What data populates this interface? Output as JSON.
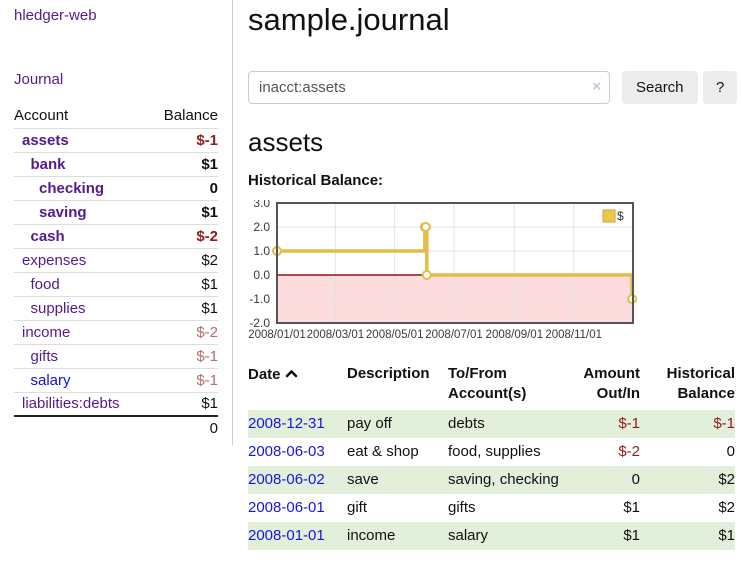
{
  "sidebar": {
    "app_title": "hledger-web",
    "journal_label": "Journal",
    "accounts_table": {
      "headers": {
        "account": "Account",
        "balance": "Balance"
      },
      "rows": [
        {
          "name": "assets",
          "balance": "$-1",
          "indent": 1,
          "bold": true,
          "balance_style": "neg-strong"
        },
        {
          "name": "bank",
          "balance": "$1",
          "indent": 2,
          "bold": true,
          "balance_style": "pos"
        },
        {
          "name": "checking",
          "balance": "0",
          "indent": 3,
          "bold": true,
          "balance_style": "pos"
        },
        {
          "name": "saving",
          "balance": "$1",
          "indent": 3,
          "bold": true,
          "balance_style": "pos"
        },
        {
          "name": "cash",
          "balance": "$-2",
          "indent": 2,
          "bold": true,
          "balance_style": "neg-strong"
        },
        {
          "name": "expenses",
          "balance": "$2",
          "indent": 1,
          "bold": false,
          "balance_style": "pos"
        },
        {
          "name": "food",
          "balance": "$1",
          "indent": 2,
          "bold": false,
          "balance_style": "pos"
        },
        {
          "name": "supplies",
          "balance": "$1",
          "indent": 2,
          "bold": false,
          "balance_style": "pos"
        },
        {
          "name": "income",
          "balance": "$-2",
          "indent": 1,
          "bold": false,
          "balance_style": "neg-soft"
        },
        {
          "name": "gifts",
          "balance": "$-1",
          "indent": 2,
          "bold": false,
          "balance_style": "neg-soft"
        },
        {
          "name": "salary",
          "balance": "$-1",
          "indent": 2,
          "bold": false,
          "balance_style": "neg-soft",
          "link_color": "blue"
        },
        {
          "name": "liabilities:debts",
          "balance": "$1",
          "indent": 1,
          "bold": false,
          "balance_style": "pos"
        }
      ],
      "total": "0"
    }
  },
  "header": {
    "title": "sample.journal"
  },
  "search": {
    "query": "inacct:assets",
    "clear_icon": "×",
    "button_label": "Search",
    "help_label": "?"
  },
  "account_page": {
    "heading": "assets",
    "chart_title": "Historical Balance:"
  },
  "chart_data": {
    "type": "line",
    "step": true,
    "title": "Historical Balance",
    "series": [
      {
        "name": "$",
        "color": "#e4bc48",
        "points": [
          [
            "2008-01-01",
            1
          ],
          [
            "2008-06-01",
            2
          ],
          [
            "2008-06-02",
            2
          ],
          [
            "2008-06-03",
            0
          ],
          [
            "2008-12-31",
            -1
          ]
        ]
      }
    ],
    "x_range": [
      "2008-01-01",
      "2009-01-01"
    ],
    "ylim": [
      -2,
      3
    ],
    "y_ticks": [
      {
        "value": 3,
        "label": "3.0"
      },
      {
        "value": 2,
        "label": "2.0"
      },
      {
        "value": 1,
        "label": "1.0"
      },
      {
        "value": 0,
        "label": "0.0"
      },
      {
        "value": -1,
        "label": "-1.0"
      },
      {
        "value": -2,
        "label": "-2.0"
      }
    ],
    "x_ticks": [
      {
        "date": "2008-01-01",
        "label": "2008/01/01"
      },
      {
        "date": "2008-03-01",
        "label": "2008/03/01"
      },
      {
        "date": "2008-05-01",
        "label": "2008/05/01"
      },
      {
        "date": "2008-07-01",
        "label": "2008/07/01"
      },
      {
        "date": "2008-09-01",
        "label": "2008/09/01"
      },
      {
        "date": "2008-11-01",
        "label": "2008/11/01"
      }
    ],
    "negative_fill": "#fcdcdc",
    "zero_line_color": "#8f1414",
    "grid": true,
    "legend": {
      "label": "$",
      "position": "top-right",
      "swatch_fill": "#ecc94b",
      "swatch_border": "#c8a33b"
    }
  },
  "register": {
    "headers": {
      "date": "Date",
      "description": "Description",
      "account": "To/From Account(s)",
      "amount": "Amount Out/In",
      "balance": "Historical Balance"
    },
    "rows": [
      {
        "date": "2008-12-31",
        "description": "pay off",
        "accounts": "debts",
        "amount": "$-1",
        "amount_neg": true,
        "balance": "$-1",
        "balance_neg": true,
        "green": true
      },
      {
        "date": "2008-06-03",
        "description": "eat & shop",
        "accounts": "food, supplies",
        "amount": "$-2",
        "amount_neg": true,
        "balance": "0",
        "balance_neg": false,
        "green": false
      },
      {
        "date": "2008-06-02",
        "description": "save",
        "accounts": "saving, checking",
        "amount": "0",
        "amount_neg": false,
        "balance": "$2",
        "balance_neg": false,
        "green": true
      },
      {
        "date": "2008-06-01",
        "description": "gift",
        "accounts": "gifts",
        "amount": "$1",
        "amount_neg": false,
        "balance": "$2",
        "balance_neg": false,
        "green": false
      },
      {
        "date": "2008-01-01",
        "description": "income",
        "accounts": "salary",
        "amount": "$1",
        "amount_neg": false,
        "balance": "$1",
        "balance_neg": false,
        "green": true
      }
    ]
  }
}
